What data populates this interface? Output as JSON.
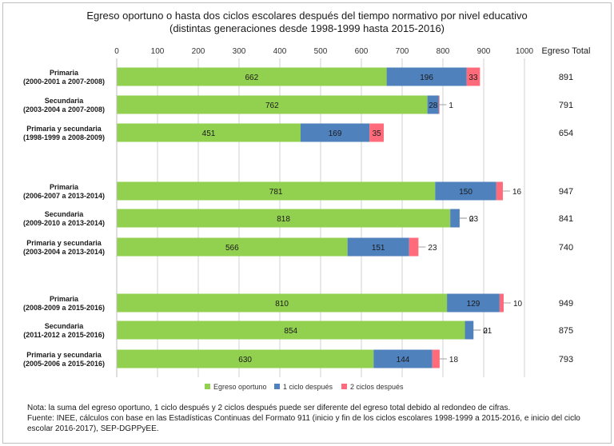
{
  "chart_data": {
    "type": "bar",
    "orientation": "horizontal",
    "stacked": true,
    "title": "Egreso oportuno  o hasta dos ciclos escolares después del tiempo normativo  por nivel educativo",
    "subtitle": "(distintas generaciones desde 1998-1999 hasta 2015-2016)",
    "xlim": [
      0,
      1000
    ],
    "x_ticks": [
      "0",
      "100",
      "200",
      "300",
      "400",
      "500",
      "600",
      "700",
      "800",
      "900",
      "1000"
    ],
    "grid": true,
    "legend_position": "bottom",
    "total_header": "Egreso Total",
    "categories": [
      {
        "name": "Primaria",
        "period": "(2000-2001 a 2007-2008)"
      },
      {
        "name": "Secundaria",
        "period": "(2003-2004 a 2007-2008)"
      },
      {
        "name": "Primaria y secundaria",
        "period": "(1998-1999 a 2008-2009)"
      },
      {
        "name": "Primaria",
        "period": "(2006-2007 a 2013-2014)"
      },
      {
        "name": "Secundaria",
        "period": "(2009-2010 a 2013-2014)"
      },
      {
        "name": "Primaria y secundaria",
        "period": "(2003-2004 a 2013-2014)"
      },
      {
        "name": "Primaria",
        "period": "(2008-2009 a 2015-2016)"
      },
      {
        "name": "Secundaria",
        "period": "(2011-2012 a 2015-2016)"
      },
      {
        "name": "Primaria y secundaria",
        "period": "(2005-2006 a 2015-2016)"
      }
    ],
    "series": [
      {
        "name": "Egreso oportuno",
        "color": "#92d050",
        "values": [
          662,
          762,
          451,
          781,
          818,
          566,
          810,
          854,
          630
        ]
      },
      {
        "name": "1 ciclo después",
        "color": "#4f81bd",
        "values": [
          196,
          28,
          169,
          150,
          23,
          151,
          129,
          21,
          144
        ]
      },
      {
        "name": "2 ciclos después",
        "color": "#ff6b7a",
        "values": [
          33,
          1,
          35,
          16,
          0,
          23,
          10,
          0,
          18
        ]
      }
    ],
    "totals": [
      891,
      791,
      654,
      947,
      841,
      740,
      949,
      875,
      793
    ]
  },
  "notes": {
    "note1": "Nota:  la suma del egreso oportuno, 1 ciclo después y 2 ciclos después puede ser diferente  del egreso total debido al redondeo de cifras.",
    "note2": "Fuente:  INEE,  cálculos con base en las Estadísticas Continuas del Formato 911 (inicio y fin de los ciclos escolares 1998-1999 a 2015-2016, e inicio del ciclo",
    "note3": "escolar 2016-2017), SEP-DGPPyEE."
  }
}
